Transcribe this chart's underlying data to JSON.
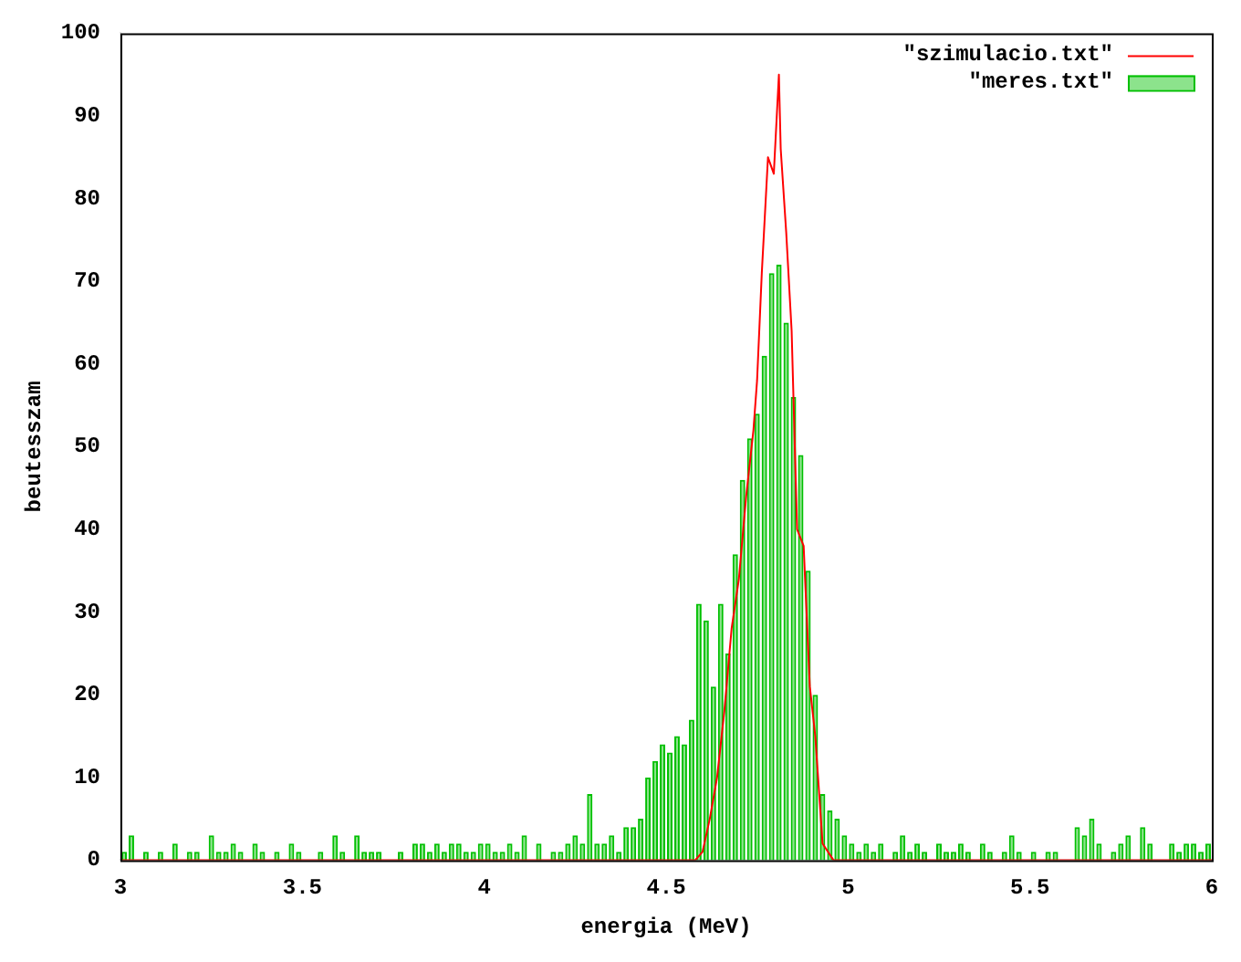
{
  "chart_data": {
    "type": "histogram",
    "xlabel": "energia (MeV)",
    "ylabel": "beutesszam",
    "xlim": [
      3,
      6
    ],
    "ylim": [
      0,
      100
    ],
    "xticks": [
      3,
      3.5,
      4,
      4.5,
      5,
      5.5,
      6
    ],
    "yticks": [
      0,
      10,
      20,
      30,
      40,
      50,
      60,
      70,
      80,
      90,
      100
    ],
    "legend": "top right",
    "grid": false,
    "bins": [
      3.0,
      3.02,
      3.04,
      3.06,
      3.08,
      3.1,
      3.12,
      3.14,
      3.16,
      3.18,
      3.2,
      3.22,
      3.24,
      3.26,
      3.28,
      3.3,
      3.32,
      3.34,
      3.36,
      3.38,
      3.4,
      3.42,
      3.44,
      3.46,
      3.48,
      3.5,
      3.52,
      3.54,
      3.56,
      3.58,
      3.6,
      3.62,
      3.64,
      3.66,
      3.68,
      3.7,
      3.72,
      3.74,
      3.76,
      3.78,
      3.8,
      3.82,
      3.84,
      3.86,
      3.88,
      3.9,
      3.92,
      3.94,
      3.96,
      3.98,
      4.0,
      4.02,
      4.04,
      4.06,
      4.08,
      4.1,
      4.12,
      4.14,
      4.16,
      4.18,
      4.2,
      4.22,
      4.24,
      4.26,
      4.28,
      4.3,
      4.32,
      4.34,
      4.36,
      4.38,
      4.4,
      4.42,
      4.44,
      4.46,
      4.48,
      4.5,
      4.52,
      4.54,
      4.56,
      4.58,
      4.6,
      4.62,
      4.64,
      4.66,
      4.68,
      4.7,
      4.72,
      4.74,
      4.76,
      4.78,
      4.8,
      4.82,
      4.84,
      4.86,
      4.88,
      4.9,
      4.92,
      4.94,
      4.96,
      4.98,
      5.0,
      5.02,
      5.04,
      5.06,
      5.08,
      5.1,
      5.12,
      5.14,
      5.16,
      5.18,
      5.2,
      5.22,
      5.24,
      5.26,
      5.28,
      5.3,
      5.32,
      5.34,
      5.36,
      5.38,
      5.4,
      5.42,
      5.44,
      5.46,
      5.48,
      5.5,
      5.52,
      5.54,
      5.56,
      5.58,
      5.6,
      5.62,
      5.64,
      5.66,
      5.68,
      5.7,
      5.72,
      5.74,
      5.76,
      5.78,
      5.8,
      5.82,
      5.84,
      5.86,
      5.88,
      5.9,
      5.92,
      5.94,
      5.96,
      5.98,
      6.0
    ],
    "series": [
      {
        "name": "\"szimulacio.txt\"",
        "type": "line",
        "color": "#ff0000",
        "x": [
          3.0,
          4.5,
          4.58,
          4.6,
          4.62,
          4.64,
          4.66,
          4.68,
          4.7,
          4.72,
          4.74,
          4.75,
          4.763,
          4.78,
          4.796,
          4.81,
          4.815,
          4.83,
          4.845,
          4.85,
          4.86,
          4.878,
          4.895,
          4.91,
          4.93,
          4.96,
          5.0,
          6.0
        ],
        "values": [
          0,
          0,
          0,
          1,
          5,
          10,
          18,
          28,
          34,
          44,
          52,
          58,
          71,
          85,
          83,
          95,
          86,
          76,
          64,
          56,
          40,
          38,
          21,
          15,
          2,
          0,
          0,
          0
        ]
      },
      {
        "name": "\"meres.txt\"",
        "color": "#00c000",
        "values": [
          1,
          3,
          0,
          1,
          0,
          1,
          0,
          2,
          0,
          1,
          1,
          0,
          3,
          1,
          1,
          2,
          1,
          0,
          2,
          1,
          0,
          1,
          0,
          2,
          1,
          0,
          0,
          1,
          0,
          3,
          1,
          0,
          3,
          1,
          1,
          1,
          0,
          0,
          1,
          0,
          2,
          2,
          1,
          2,
          1,
          2,
          2,
          1,
          1,
          2,
          2,
          1,
          1,
          2,
          1,
          3,
          0,
          2,
          0,
          1,
          1,
          2,
          3,
          2,
          8,
          2,
          2,
          3,
          1,
          4,
          4,
          5,
          10,
          12,
          14,
          13,
          15,
          14,
          17,
          31,
          29,
          21,
          31,
          25,
          37,
          46,
          51,
          54,
          61,
          71,
          72,
          65,
          56,
          49,
          35,
          20,
          8,
          6,
          5,
          3,
          2,
          1,
          2,
          1,
          2,
          0,
          1,
          3,
          1,
          2,
          1,
          0,
          2,
          1,
          1,
          2,
          1,
          0,
          2,
          1,
          0,
          1,
          3,
          1,
          0,
          1,
          0,
          1,
          1,
          0,
          0,
          4,
          3,
          5,
          2,
          0,
          1,
          2,
          3,
          0,
          4,
          2,
          0,
          0,
          2,
          1,
          2,
          2,
          1,
          2
        ]
      }
    ]
  }
}
